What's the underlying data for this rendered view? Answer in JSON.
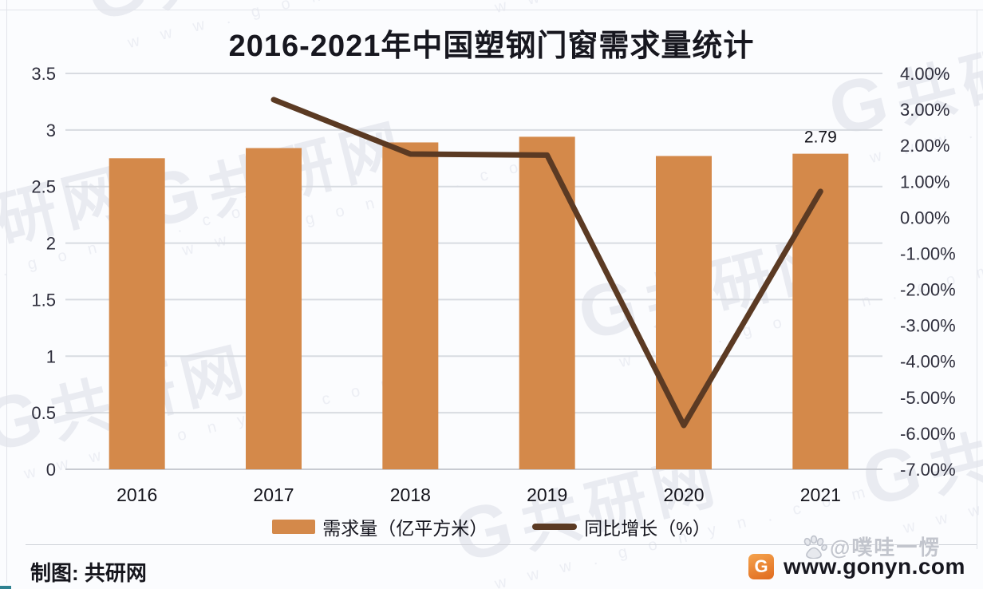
{
  "title": "2016-2021年中国塑钢门窗需求量统计",
  "chart_data": {
    "type": "bar",
    "subtype": "bar+line combo, dual axis",
    "categories": [
      "2016",
      "2017",
      "2018",
      "2019",
      "2020",
      "2021"
    ],
    "series": [
      {
        "name": "需求量（亿平方米）",
        "type": "bar",
        "axis": "left",
        "values": [
          2.75,
          2.84,
          2.89,
          2.94,
          2.77,
          2.79
        ],
        "color": "#d4894a"
      },
      {
        "name": "同比增长（%）",
        "type": "line",
        "axis": "right",
        "values": [
          null,
          3.27,
          1.76,
          1.73,
          -5.78,
          0.72
        ],
        "color": "#5b3a23"
      }
    ],
    "title": "2016-2021年中国塑钢门窗需求量统计",
    "xlabel": "",
    "ylabel_left": "",
    "ylabel_right": "",
    "left_axis": {
      "min": 0,
      "max": 3.5,
      "step": 0.5,
      "ticks": [
        "0",
        "0.5",
        "1",
        "1.5",
        "2",
        "2.5",
        "3",
        "3.5"
      ]
    },
    "right_axis": {
      "min": -7,
      "max": 4,
      "step": 1,
      "ticks": [
        "4.00%",
        "3.00%",
        "2.00%",
        "1.00%",
        "0.00%",
        "-1.00%",
        "-2.00%",
        "-3.00%",
        "-4.00%",
        "-5.00%",
        "-6.00%",
        "-7.00%"
      ]
    },
    "annotations": [
      {
        "category": "2021",
        "series": "需求量（亿平方米）",
        "text": "2.79"
      }
    ],
    "grid": true,
    "legend_position": "bottom"
  },
  "legend": {
    "items": [
      {
        "label": "需求量（亿平方米）",
        "swatch": "bar",
        "color": "#d4894a"
      },
      {
        "label": "同比增长（%）",
        "swatch": "line",
        "color": "#5b3a23"
      }
    ]
  },
  "footer": {
    "credit": "制图: 共研网",
    "site": "www.gonyn.com",
    "logo_letter": "G",
    "overlay_handle": "@噗哇一愣"
  },
  "watermark": {
    "brand_g": "G",
    "brand": "共研网",
    "url_spaced": "w w w . g o n y n . c o m"
  },
  "colors": {
    "bar": "#d4894a",
    "line": "#5b3a23",
    "grid": "#d8dbe1",
    "axis": "#c8cbd2",
    "tick_text": "#2e2e3c",
    "category_text": "#14141c"
  }
}
